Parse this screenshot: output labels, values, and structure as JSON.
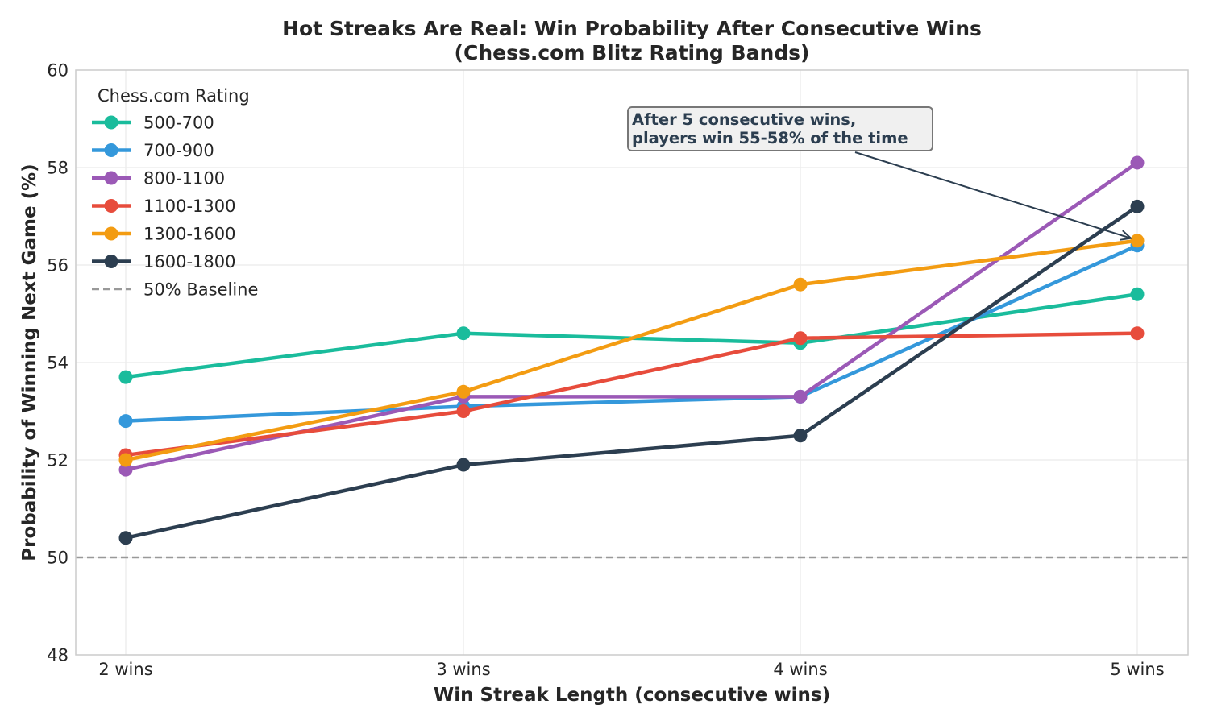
{
  "chart_data": {
    "type": "line",
    "title": "Hot Streaks Are Real: Win Probability After Consecutive Wins",
    "subtitle": "(Chess.com Blitz Rating Bands)",
    "xlabel": "Win Streak Length (consecutive wins)",
    "ylabel": "Probability of Winning Next Game (%)",
    "categories": [
      "2 wins",
      "3 wins",
      "4 wins",
      "5 wins"
    ],
    "ylim": [
      48,
      60
    ],
    "yticks": [
      48,
      50,
      52,
      54,
      56,
      58,
      60
    ],
    "grid": true,
    "legend": {
      "title": "Chess.com Rating",
      "placement": "top-left",
      "baseline_label": "50% Baseline"
    },
    "baseline": {
      "value": 50,
      "color": "#999999",
      "style": "dashed"
    },
    "series": [
      {
        "name": "500-700",
        "color": "#1abc9c",
        "values": [
          53.7,
          54.6,
          54.4,
          55.4
        ]
      },
      {
        "name": "700-900",
        "color": "#3498db",
        "values": [
          52.8,
          53.1,
          53.3,
          56.4
        ]
      },
      {
        "name": "800-1100",
        "color": "#9b59b6",
        "values": [
          51.8,
          53.3,
          53.3,
          58.1
        ]
      },
      {
        "name": "1100-1300",
        "color": "#e74c3c",
        "values": [
          52.1,
          53.0,
          54.5,
          54.6
        ]
      },
      {
        "name": "1300-1600",
        "color": "#f39c12",
        "values": [
          52.0,
          53.4,
          55.6,
          56.5
        ]
      },
      {
        "name": "1600-1800",
        "color": "#2c3e50",
        "values": [
          50.4,
          51.9,
          52.5,
          57.2
        ]
      }
    ],
    "annotation": {
      "lines": [
        "After 5 consecutive wins,",
        "players win 55-58% of the time"
      ],
      "arrow_target": {
        "category": "5 wins",
        "value": 56.5
      },
      "color": "#2c3e50"
    }
  }
}
